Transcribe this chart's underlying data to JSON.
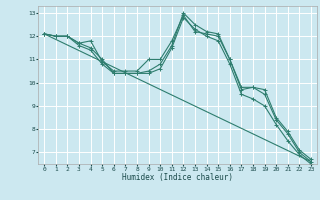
{
  "title": "",
  "xlabel": "Humidex (Indice chaleur)",
  "bg_color": "#cce8f0",
  "grid_color": "#ffffff",
  "line_color": "#2e7d6e",
  "xlim": [
    -0.5,
    23.5
  ],
  "ylim": [
    6.5,
    13.3
  ],
  "xticks": [
    0,
    1,
    2,
    3,
    4,
    5,
    6,
    7,
    8,
    9,
    10,
    11,
    12,
    13,
    14,
    15,
    16,
    17,
    18,
    19,
    20,
    21,
    22,
    23
  ],
  "yticks": [
    7,
    8,
    9,
    10,
    11,
    12,
    13
  ],
  "lines": [
    {
      "x": [
        0,
        1,
        2,
        3,
        4,
        5,
        6,
        7,
        8,
        9,
        10,
        11,
        12,
        13,
        14,
        15,
        16,
        17,
        18,
        19,
        20,
        21,
        22,
        23
      ],
      "y": [
        12.1,
        12.0,
        12.0,
        11.7,
        11.8,
        10.9,
        10.5,
        10.5,
        10.5,
        11.0,
        11.0,
        11.8,
        12.9,
        12.2,
        12.1,
        12.0,
        11.0,
        9.7,
        9.8,
        9.7,
        8.5,
        7.9,
        7.1,
        6.7
      ]
    },
    {
      "x": [
        0,
        1,
        2,
        3,
        4,
        5,
        6,
        7,
        8,
        9,
        10,
        11,
        12,
        13,
        14,
        15,
        16,
        17,
        18,
        19,
        20,
        21,
        22,
        23
      ],
      "y": [
        12.1,
        12.0,
        12.0,
        11.7,
        11.5,
        11.0,
        10.4,
        10.4,
        10.4,
        10.5,
        10.8,
        11.6,
        13.0,
        12.5,
        12.2,
        12.1,
        11.0,
        9.8,
        9.8,
        9.5,
        8.4,
        7.8,
        7.0,
        6.6
      ]
    },
    {
      "x": [
        0,
        1,
        2,
        3,
        4,
        5,
        6,
        7,
        8,
        9,
        10,
        11,
        12,
        13,
        14,
        15,
        16,
        17,
        18,
        19,
        20,
        21,
        22,
        23
      ],
      "y": [
        12.1,
        12.0,
        12.0,
        11.6,
        11.4,
        10.8,
        10.4,
        10.4,
        10.4,
        10.4,
        10.6,
        11.5,
        12.8,
        12.3,
        12.0,
        11.8,
        10.8,
        9.5,
        9.3,
        9.0,
        8.2,
        7.5,
        6.9,
        6.5
      ]
    },
    {
      "x": [
        0,
        23
      ],
      "y": [
        12.1,
        6.6
      ]
    }
  ]
}
